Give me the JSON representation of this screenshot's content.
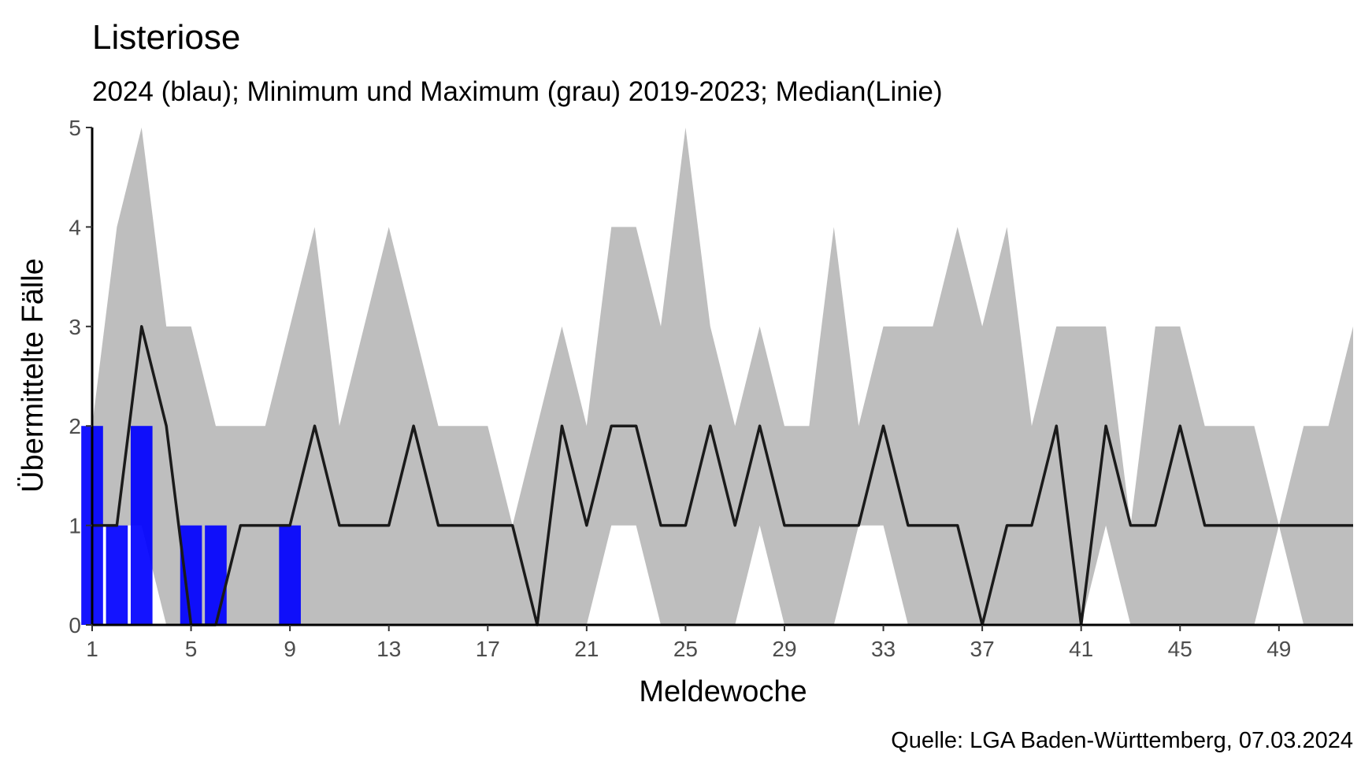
{
  "chart_data": {
    "type": "bar",
    "title": "Listeriose",
    "subtitle": "2024 (blau); Minimum und Maximum (grau) 2019-2023; Median(Linie)",
    "xlabel": "Meldewoche",
    "ylabel": "Übermittelte Fälle",
    "caption": "Quelle: LGA Baden-Württemberg, 07.03.2024",
    "xlim": [
      1,
      52
    ],
    "ylim": [
      0,
      5
    ],
    "x_ticks": [
      "1",
      "5",
      "9",
      "13",
      "17",
      "21",
      "25",
      "29",
      "33",
      "37",
      "41",
      "45",
      "49"
    ],
    "y_ticks": [
      "0",
      "1",
      "2",
      "3",
      "4",
      "5"
    ],
    "grid": false,
    "colors": {
      "bars": "#0000ff",
      "band": "#bebebe",
      "median": "#1a1a1a"
    },
    "weeks": [
      1,
      2,
      3,
      4,
      5,
      6,
      7,
      8,
      9,
      10,
      11,
      12,
      13,
      14,
      15,
      16,
      17,
      18,
      19,
      20,
      21,
      22,
      23,
      24,
      25,
      26,
      27,
      28,
      29,
      30,
      31,
      32,
      33,
      34,
      35,
      36,
      37,
      38,
      39,
      40,
      41,
      42,
      43,
      44,
      45,
      46,
      47,
      48,
      49,
      50,
      51,
      52
    ],
    "series": [
      {
        "name": "2024",
        "type": "bar",
        "x": [
          1,
          2,
          3,
          4,
          5,
          6,
          7,
          8,
          9
        ],
        "values": [
          2,
          1,
          2,
          0,
          1,
          1,
          0,
          0,
          1
        ]
      },
      {
        "name": "Minimum",
        "type": "band-lower",
        "values": [
          1,
          1,
          1,
          0,
          0,
          0,
          0,
          0,
          0,
          0,
          0,
          0,
          0,
          0,
          0,
          0,
          0,
          0,
          0,
          0,
          0,
          1,
          1,
          0,
          0,
          0,
          0,
          1,
          0,
          0,
          0,
          1,
          1,
          0,
          0,
          0,
          0,
          0,
          0,
          0,
          0,
          1,
          0,
          0,
          0,
          0,
          0,
          0,
          1,
          0,
          0,
          0
        ]
      },
      {
        "name": "Maximum",
        "type": "band-upper",
        "values": [
          2,
          4,
          5,
          3,
          3,
          2,
          2,
          2,
          3,
          4,
          2,
          3,
          4,
          3,
          2,
          2,
          2,
          1,
          2,
          3,
          2,
          4,
          4,
          3,
          5,
          3,
          2,
          3,
          2,
          2,
          4,
          2,
          3,
          3,
          3,
          4,
          3,
          4,
          2,
          3,
          3,
          3,
          1,
          3,
          3,
          2,
          2,
          2,
          1,
          2,
          2,
          3
        ]
      },
      {
        "name": "Median",
        "type": "line",
        "values": [
          1,
          1,
          3,
          2,
          0,
          0,
          1,
          1,
          1,
          2,
          1,
          1,
          1,
          2,
          1,
          1,
          1,
          1,
          0,
          2,
          1,
          2,
          2,
          1,
          1,
          2,
          1,
          2,
          1,
          1,
          1,
          1,
          2,
          1,
          1,
          1,
          0,
          1,
          1,
          2,
          0,
          2,
          1,
          1,
          2,
          1,
          1,
          1,
          1,
          1,
          1,
          1
        ]
      }
    ]
  }
}
